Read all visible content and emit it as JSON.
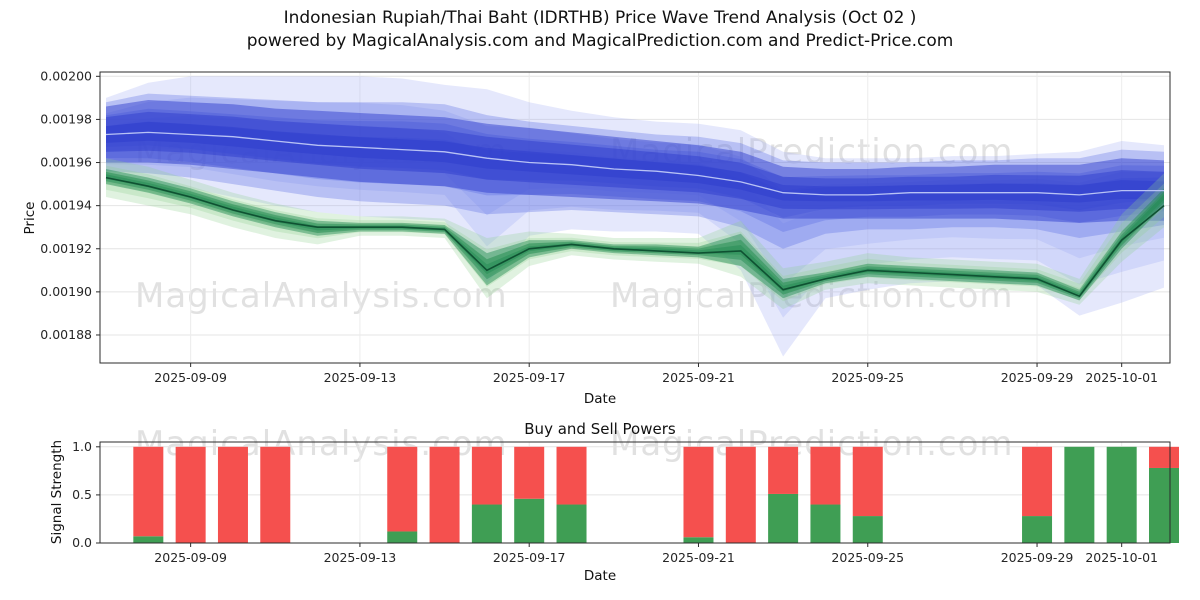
{
  "title": {
    "line1": "Indonesian Rupiah/Thai Baht (IDRTHB) Price Wave Trend Analysis (Oct 02 )",
    "line2": "powered by MagicalAnalysis.com and MagicalPrediction.com and Predict-Price.com"
  },
  "watermarks": {
    "analysis": "MagicalAnalysis.com",
    "prediction": "MagicalPrediction.com"
  },
  "chart_data": [
    {
      "type": "area",
      "title": "",
      "xlabel": "Date",
      "ylabel": "Price",
      "ylim": [
        0.001867,
        0.002002
      ],
      "grid": true,
      "dates": [
        "2025-09-07",
        "2025-09-08",
        "2025-09-09",
        "2025-09-10",
        "2025-09-11",
        "2025-09-12",
        "2025-09-13",
        "2025-09-14",
        "2025-09-15",
        "2025-09-16",
        "2025-09-17",
        "2025-09-18",
        "2025-09-19",
        "2025-09-20",
        "2025-09-21",
        "2025-09-22",
        "2025-09-23",
        "2025-09-24",
        "2025-09-25",
        "2025-09-26",
        "2025-09-27",
        "2025-09-28",
        "2025-09-29",
        "2025-09-30",
        "2025-10-01",
        "2025-10-02"
      ],
      "x_ticks": [
        "2025-09-09",
        "2025-09-13",
        "2025-09-17",
        "2025-09-21",
        "2025-09-25",
        "2025-09-29",
        "2025-10-01"
      ],
      "y_ticks": [
        {
          "v": 0.00188,
          "label": "0.00188"
        },
        {
          "v": 0.0019,
          "label": "0.00190"
        },
        {
          "v": 0.00192,
          "label": "0.00192"
        },
        {
          "v": 0.00194,
          "label": "0.00194"
        },
        {
          "v": 0.00196,
          "label": "0.00196"
        },
        {
          "v": 0.00198,
          "label": "0.00198"
        },
        {
          "v": 0.002,
          "label": "0.00200"
        }
      ],
      "bands": [
        {
          "name": "blue-wide-prediction-band",
          "color": "#97a5f2",
          "opacity": 0.5,
          "upper": [
            0.00199,
            0.001997,
            0.002,
            0.002,
            0.002,
            0.002,
            0.002,
            0.001999,
            0.001996,
            0.001994,
            0.001988,
            0.001984,
            0.001981,
            0.001979,
            0.001978,
            0.001975,
            0.001965,
            0.001962,
            0.001962,
            0.001962,
            0.001963,
            0.001963,
            0.001964,
            0.001965,
            0.00197,
            0.001968
          ],
          "lower": [
            0.001952,
            0.00195,
            0.001948,
            0.001944,
            0.00194,
            0.001937,
            0.001935,
            0.001934,
            0.001933,
            0.001904,
            0.001926,
            0.001929,
            0.001928,
            0.001928,
            0.001927,
            0.00191,
            0.00187,
            0.001897,
            0.001901,
            0.001904,
            0.001905,
            0.001904,
            0.001903,
            0.001889,
            0.001895,
            0.001902
          ]
        },
        {
          "name": "blue-outer-band",
          "color": "#5064e0",
          "opacity": 0.6,
          "upper": [
            0.001988,
            0.001992,
            0.001991,
            0.00199,
            0.001989,
            0.001988,
            0.001988,
            0.001988,
            0.001987,
            0.001982,
            0.001979,
            0.001977,
            0.001975,
            0.001973,
            0.001972,
            0.001969,
            0.001961,
            0.00196,
            0.00196,
            0.00196,
            0.001961,
            0.001961,
            0.001962,
            0.001962,
            0.001966,
            0.001965
          ],
          "lower": [
            0.001956,
            0.001955,
            0.001953,
            0.00195,
            0.001947,
            0.001944,
            0.001942,
            0.001941,
            0.00194,
            0.001936,
            0.001937,
            0.001938,
            0.001937,
            0.001936,
            0.001935,
            0.00193,
            0.00192,
            0.001927,
            0.001929,
            0.001929,
            0.00193,
            0.00193,
            0.001929,
            0.001925,
            0.001928,
            0.001931
          ]
        },
        {
          "name": "blue-inner-band",
          "color": "#2c3ccc",
          "opacity": 0.95,
          "upper": [
            0.001986,
            0.001989,
            0.001988,
            0.001987,
            0.001985,
            0.001984,
            0.001983,
            0.001982,
            0.001981,
            0.001978,
            0.001976,
            0.001974,
            0.001972,
            0.00197,
            0.001968,
            0.001965,
            0.001958,
            0.001957,
            0.001957,
            0.001958,
            0.001958,
            0.001959,
            0.001959,
            0.001959,
            0.001962,
            0.001961
          ],
          "lower": [
            0.00196,
            0.00196,
            0.001959,
            0.001957,
            0.001955,
            0.001953,
            0.001951,
            0.00195,
            0.001949,
            0.001946,
            0.001945,
            0.001944,
            0.001943,
            0.001942,
            0.001941,
            0.001938,
            0.001934,
            0.001934,
            0.001934,
            0.001934,
            0.001934,
            0.001934,
            0.001933,
            0.001932,
            0.001933,
            0.001933
          ]
        },
        {
          "name": "green-outer-band",
          "color": "#8fd08f",
          "opacity": 0.55,
          "upper": [
            0.001962,
            0.001958,
            0.001952,
            0.001946,
            0.001941,
            0.001937,
            0.001935,
            0.001935,
            0.001934,
            0.001925,
            0.001928,
            0.001927,
            0.001925,
            0.001925,
            0.001925,
            0.001933,
            0.001911,
            0.001914,
            0.001918,
            0.001916,
            0.001915,
            0.001914,
            0.001913,
            0.001906,
            0.001936,
            0.001955
          ],
          "lower": [
            0.001944,
            0.00194,
            0.001936,
            0.00193,
            0.001925,
            0.001922,
            0.001926,
            0.001926,
            0.001925,
            0.001897,
            0.001912,
            0.001917,
            0.001915,
            0.001914,
            0.001913,
            0.001907,
            0.001892,
            0.001901,
            0.001904,
            0.001903,
            0.001902,
            0.001901,
            0.0019,
            0.001894,
            0.001914,
            0.00193
          ]
        },
        {
          "name": "green-inner-band",
          "color": "#1f8a50",
          "opacity": 0.9,
          "upper": [
            0.001957,
            0.001953,
            0.001948,
            0.001942,
            0.001937,
            0.001933,
            0.001932,
            0.001932,
            0.001931,
            0.001918,
            0.001924,
            0.001924,
            0.001922,
            0.001922,
            0.001921,
            0.001927,
            0.001906,
            0.001909,
            0.001913,
            0.001912,
            0.001911,
            0.00191,
            0.001909,
            0.001901,
            0.001928,
            0.001948
          ],
          "lower": [
            0.00195,
            0.001946,
            0.001941,
            0.001935,
            0.00193,
            0.001926,
            0.001928,
            0.001928,
            0.001927,
            0.001903,
            0.001916,
            0.00192,
            0.001918,
            0.001917,
            0.001916,
            0.001912,
            0.001897,
            0.001904,
            0.001907,
            0.001906,
            0.001905,
            0.001904,
            0.001903,
            0.001896,
            0.00192,
            0.00194
          ]
        }
      ],
      "lines": [
        {
          "name": "blue-mid-line",
          "color": "#b8c2f5",
          "width": 1.3,
          "values": [
            0.001973,
            0.001974,
            0.001973,
            0.001972,
            0.00197,
            0.001968,
            0.001967,
            0.001966,
            0.001965,
            0.001962,
            0.00196,
            0.001959,
            0.001957,
            0.001956,
            0.001954,
            0.001951,
            0.001946,
            0.001945,
            0.001945,
            0.001946,
            0.001946,
            0.001946,
            0.001946,
            0.001945,
            0.001947,
            0.001947
          ]
        },
        {
          "name": "green-dark-line",
          "color": "#0f5132",
          "width": 1.6,
          "values": [
            0.001953,
            0.001949,
            0.001944,
            0.001938,
            0.001933,
            0.00193,
            0.00193,
            0.00193,
            0.001929,
            0.00191,
            0.00192,
            0.001922,
            0.00192,
            0.001919,
            0.001918,
            0.001919,
            0.001901,
            0.001906,
            0.00191,
            0.001909,
            0.001908,
            0.001907,
            0.001906,
            0.001898,
            0.001924,
            0.00194
          ]
        }
      ]
    },
    {
      "type": "bar",
      "title": "Buy and Sell Powers",
      "xlabel": "Date",
      "ylabel": "Signal Strength",
      "ylim": [
        0,
        1.05
      ],
      "grid": true,
      "stacked": true,
      "dates": [
        "2025-09-07",
        "2025-09-08",
        "2025-09-09",
        "2025-09-10",
        "2025-09-11",
        "2025-09-12",
        "2025-09-13",
        "2025-09-14",
        "2025-09-15",
        "2025-09-16",
        "2025-09-17",
        "2025-09-18",
        "2025-09-19",
        "2025-09-20",
        "2025-09-21",
        "2025-09-22",
        "2025-09-23",
        "2025-09-24",
        "2025-09-25",
        "2025-09-26",
        "2025-09-27",
        "2025-09-28",
        "2025-09-29",
        "2025-09-30",
        "2025-10-01",
        "2025-10-02"
      ],
      "x_ticks": [
        "2025-09-09",
        "2025-09-13",
        "2025-09-17",
        "2025-09-21",
        "2025-09-25",
        "2025-09-29",
        "2025-10-01"
      ],
      "y_ticks": [
        {
          "v": 0.0,
          "label": "0.0"
        },
        {
          "v": 0.5,
          "label": "0.5"
        },
        {
          "v": 1.0,
          "label": "1.0"
        }
      ],
      "series": [
        {
          "name": "buy-power",
          "color": "#3f9e54",
          "values": [
            0,
            0.07,
            0,
            0,
            0,
            0,
            0,
            0.12,
            0,
            0.4,
            0.46,
            0.4,
            0,
            0,
            0.06,
            0,
            0.51,
            0.4,
            0.28,
            0,
            0,
            0,
            0.28,
            1.0,
            1.0,
            0.78
          ]
        },
        {
          "name": "sell-power",
          "color": "#f5504e",
          "values": [
            0,
            0.93,
            1,
            1,
            1,
            0,
            0,
            0.88,
            1,
            0.6,
            0.54,
            0.6,
            0,
            0,
            0.94,
            1,
            0.49,
            0.6,
            0.72,
            0,
            0,
            0,
            0.72,
            0,
            0,
            0.22
          ]
        }
      ]
    }
  ]
}
